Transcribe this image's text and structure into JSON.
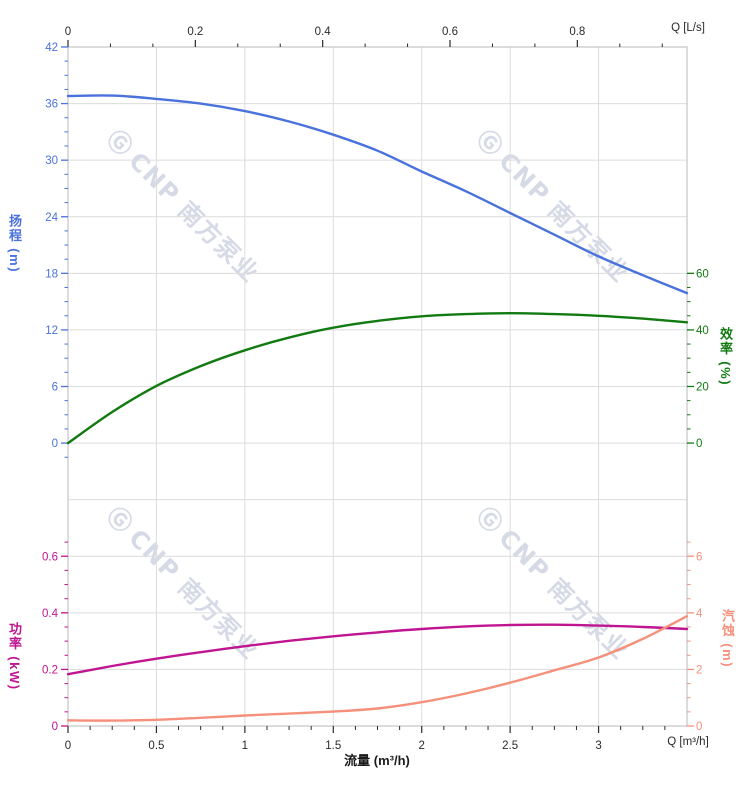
{
  "watermark": {
    "brand_mark": "Ⓖ",
    "text": "CNP 南方泵业"
  },
  "colors": {
    "head": "#4a72dc",
    "efficiency": "#117a11",
    "power": "#c01591",
    "npsh": "#f5907b",
    "grid": "#dcdcdc",
    "frame": "#c4c4c4",
    "axis_text": "#2b2b2b"
  },
  "axes": {
    "top": {
      "unit_label": "Q [L/s]",
      "ticks": [
        "0",
        "0.2",
        "0.4",
        "0.6",
        "0.8"
      ],
      "tick_values": [
        0,
        0.2,
        0.4,
        0.6,
        0.8
      ]
    },
    "bottom": {
      "unit_label": "Q [m³/h]",
      "title": "流量 (m³/h)",
      "ticks": [
        "0",
        "0.5",
        "1",
        "1.5",
        "2",
        "2.5",
        "3"
      ],
      "tick_values": [
        0,
        0.5,
        1,
        1.5,
        2,
        2.5,
        3
      ]
    },
    "left_head": {
      "title": "扬程 (m)",
      "ticks": [
        "42",
        "36",
        "30",
        "24",
        "18",
        "12",
        "6",
        "0"
      ],
      "tick_values": [
        42,
        36,
        30,
        24,
        18,
        12,
        6,
        0
      ]
    },
    "left_power": {
      "title": "功率 (kW)",
      "ticks": [
        "0.6",
        "0.4",
        "0.2",
        "0"
      ],
      "tick_values": [
        0.6,
        0.4,
        0.2,
        0
      ]
    },
    "right_eff": {
      "title": "效率 (%)",
      "ticks": [
        "60",
        "40",
        "20",
        "0"
      ],
      "tick_values": [
        60,
        40,
        20,
        0
      ]
    },
    "right_npsh": {
      "title": "汽蚀 (m)",
      "ticks": [
        "6",
        "4",
        "2",
        "0"
      ],
      "tick_values": [
        6,
        4,
        2,
        0
      ]
    }
  },
  "chart_data": {
    "type": "line",
    "x_unit": "m³/h",
    "x_unit_secondary": "L/s",
    "x_range": [
      0,
      3.5
    ],
    "grid": true,
    "x": [
      0,
      0.25,
      0.5,
      0.75,
      1,
      1.25,
      1.5,
      1.75,
      2,
      2.25,
      2.5,
      2.75,
      3,
      3.25,
      3.5
    ],
    "series": [
      {
        "key": "head",
        "name": "扬程",
        "unit": "m",
        "color": "#4a72dc",
        "axis_range": [
          0,
          42
        ],
        "values": [
          36.8,
          36.85,
          36.5,
          36.0,
          35.2,
          34.1,
          32.7,
          31.0,
          28.8,
          26.7,
          24.4,
          22.1,
          19.8,
          17.8,
          15.9
        ]
      },
      {
        "key": "efficiency",
        "name": "效率",
        "unit": "%",
        "color": "#117a11",
        "axis_range": [
          0,
          60
        ],
        "values": [
          0,
          11,
          20.2,
          27.2,
          32.8,
          37.3,
          40.8,
          43.2,
          44.8,
          45.6,
          45.9,
          45.6,
          45.0,
          44.0,
          42.7
        ]
      },
      {
        "key": "power",
        "name": "功率",
        "unit": "kW",
        "color": "#c01591",
        "axis_range": [
          0,
          0.6
        ],
        "values": [
          0.183,
          0.212,
          0.238,
          0.261,
          0.282,
          0.301,
          0.317,
          0.331,
          0.343,
          0.352,
          0.357,
          0.358,
          0.355,
          0.35,
          0.343
        ]
      },
      {
        "key": "npsh",
        "name": "汽蚀",
        "unit": "m",
        "color": "#f5907b",
        "axis_range": [
          0,
          6
        ],
        "values": [
          0.2,
          0.19,
          0.22,
          0.29,
          0.37,
          0.44,
          0.51,
          0.62,
          0.84,
          1.15,
          1.53,
          1.97,
          2.42,
          3.08,
          3.88
        ]
      }
    ]
  }
}
